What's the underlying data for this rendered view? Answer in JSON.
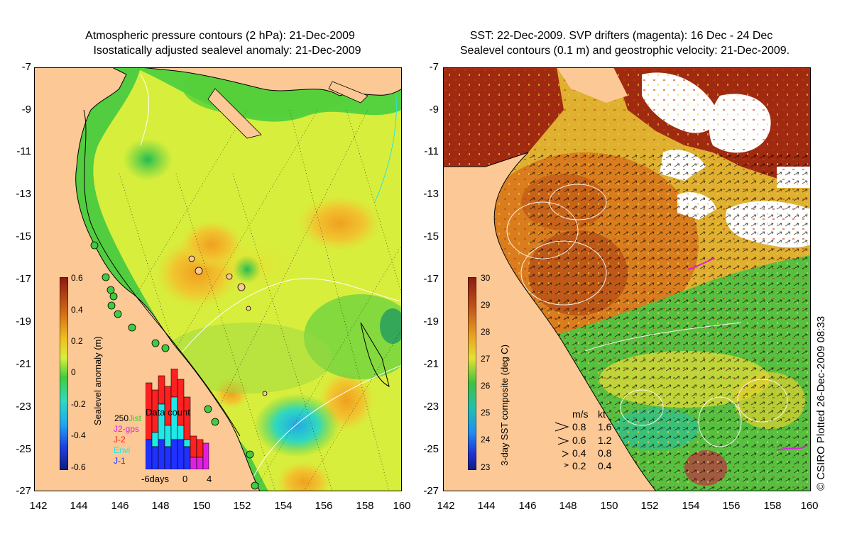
{
  "left_panel": {
    "title_line1": "Atmospheric pressure contours (2 hPa): 21-Dec-2009",
    "title_line2": "Isostatically adjusted sealevel anomaly: 21-Dec-2009",
    "colorbar_label": "Sealevel anomaly (m)",
    "colorbar_ticks": [
      "0.6",
      "0.4",
      "0.2",
      "0",
      "-0.2",
      "-0.4",
      "-0.6"
    ],
    "data_count": {
      "title": "Data count",
      "max_label": "250",
      "satellites": [
        {
          "name": "Jist",
          "color": "#2bd42b"
        },
        {
          "name": "J2-gps",
          "color": "#e020e0"
        },
        {
          "name": "J-2",
          "color": "#ff2020"
        },
        {
          "name": "Envi",
          "color": "#20e8e8"
        },
        {
          "name": "J-1",
          "color": "#2030ff"
        }
      ],
      "axis_labels": [
        "-6days",
        "0",
        "4"
      ]
    }
  },
  "right_panel": {
    "title_line1": "SST: 22-Dec-2009. SVP drifters (magenta): 16 Dec - 24 Dec",
    "title_line2": "Sealevel contours (0.1 m) and geostrophic velocity: 21-Dec-2009.",
    "colorbar_label": "3-day SST composite (deg C)",
    "colorbar_ticks": [
      "30",
      "29",
      "28",
      "27",
      "26",
      "25",
      "24",
      "23"
    ],
    "speed_legend": {
      "header_ms": "m/s",
      "header_kt": "kt",
      "rows": [
        {
          "ms": "0.8",
          "kt": "1.6"
        },
        {
          "ms": "0.6",
          "kt": "1.2"
        },
        {
          "ms": "0.4",
          "kt": "0.8"
        },
        {
          "ms": "0.2",
          "kt": "0.4"
        }
      ]
    }
  },
  "axes": {
    "lat_ticks": [
      "-7",
      "-9",
      "-11",
      "-13",
      "-15",
      "-17",
      "-19",
      "-21",
      "-23",
      "-25",
      "-27"
    ],
    "lon_ticks": [
      "142",
      "144",
      "146",
      "148",
      "150",
      "152",
      "154",
      "156",
      "158",
      "160"
    ]
  },
  "copyright": "© CSIRO Plotted 26-Dec-2009 08:33",
  "colors": {
    "land": "#fcc896",
    "sla_green": "#3fcc3f",
    "sla_yellow": "#d8ee3c",
    "sla_orange": "#f0a020",
    "sst_darkred": "#a02a10",
    "sst_orange": "#d8781e",
    "sst_yellow": "#e0c030"
  }
}
